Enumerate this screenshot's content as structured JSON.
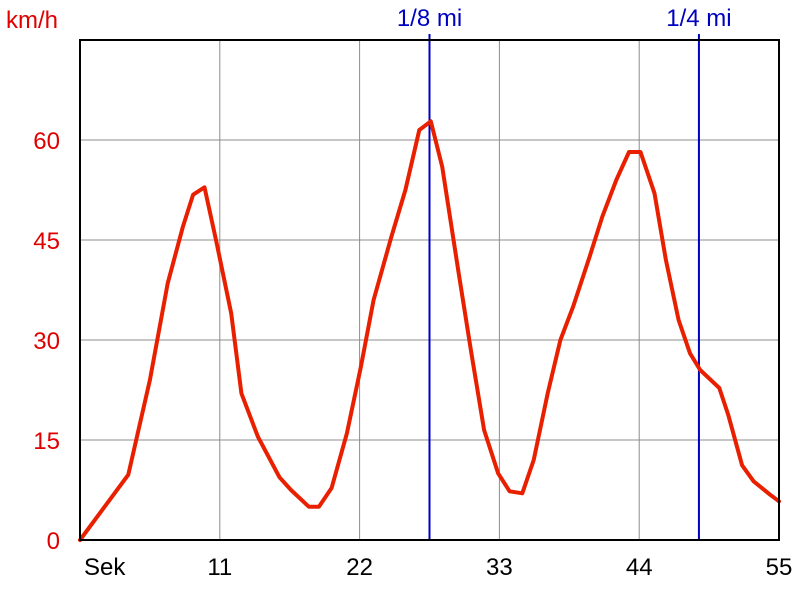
{
  "chart_data": {
    "type": "line",
    "ylabel": "km/h",
    "xlabel": "Sek",
    "xlim": [
      0,
      55
    ],
    "ylim": [
      0,
      75
    ],
    "grid": true,
    "y_ticks": [
      {
        "value": 0,
        "label": "0"
      },
      {
        "value": 15,
        "label": "15"
      },
      {
        "value": 30,
        "label": "30"
      },
      {
        "value": 45,
        "label": "45"
      },
      {
        "value": 60,
        "label": "60"
      }
    ],
    "x_ticks": [
      {
        "value": 11,
        "label": "11"
      },
      {
        "value": 22,
        "label": "22"
      },
      {
        "value": 33,
        "label": "33"
      },
      {
        "value": 44,
        "label": "44"
      },
      {
        "value": 55,
        "label": "55"
      }
    ],
    "markers": [
      {
        "x": 27.5,
        "label": "1/8 mi"
      },
      {
        "x": 48.7,
        "label": "1/4 mi"
      }
    ],
    "series": [
      {
        "line_color": "#e82000",
        "points": [
          [
            0,
            0
          ],
          [
            3.8,
            9.8
          ],
          [
            5.5,
            24
          ],
          [
            6.9,
            38.5
          ],
          [
            8.1,
            47
          ],
          [
            8.9,
            51.8
          ],
          [
            9.8,
            52.9
          ],
          [
            10.7,
            45
          ],
          [
            11.9,
            34
          ],
          [
            12.7,
            22
          ],
          [
            14,
            15.5
          ],
          [
            15.7,
            9.4
          ],
          [
            16.6,
            7.5
          ],
          [
            18,
            5
          ],
          [
            18.8,
            5
          ],
          [
            19.8,
            7.8
          ],
          [
            21,
            16
          ],
          [
            22.1,
            26
          ],
          [
            23.1,
            36
          ],
          [
            24.5,
            45.5
          ],
          [
            25.6,
            52.5
          ],
          [
            26.7,
            61.5
          ],
          [
            27.6,
            62.8
          ],
          [
            28.5,
            56
          ],
          [
            29.8,
            40
          ],
          [
            30.8,
            28
          ],
          [
            31.8,
            16.5
          ],
          [
            32.9,
            10
          ],
          [
            33.8,
            7.3
          ],
          [
            34.8,
            7
          ],
          [
            35.7,
            12
          ],
          [
            36.8,
            22
          ],
          [
            37.8,
            30
          ],
          [
            38.8,
            35
          ],
          [
            40.1,
            42.5
          ],
          [
            41.1,
            48.5
          ],
          [
            42.2,
            54
          ],
          [
            43.2,
            58.2
          ],
          [
            44.1,
            58.2
          ],
          [
            45.2,
            52
          ],
          [
            46.1,
            42
          ],
          [
            47.1,
            33
          ],
          [
            48,
            28
          ],
          [
            48.8,
            25.5
          ],
          [
            50.3,
            22.8
          ],
          [
            51,
            18.8
          ],
          [
            52.1,
            11.2
          ],
          [
            53,
            8.8
          ],
          [
            54.3,
            6.8
          ],
          [
            55,
            5.8
          ]
        ]
      }
    ]
  }
}
